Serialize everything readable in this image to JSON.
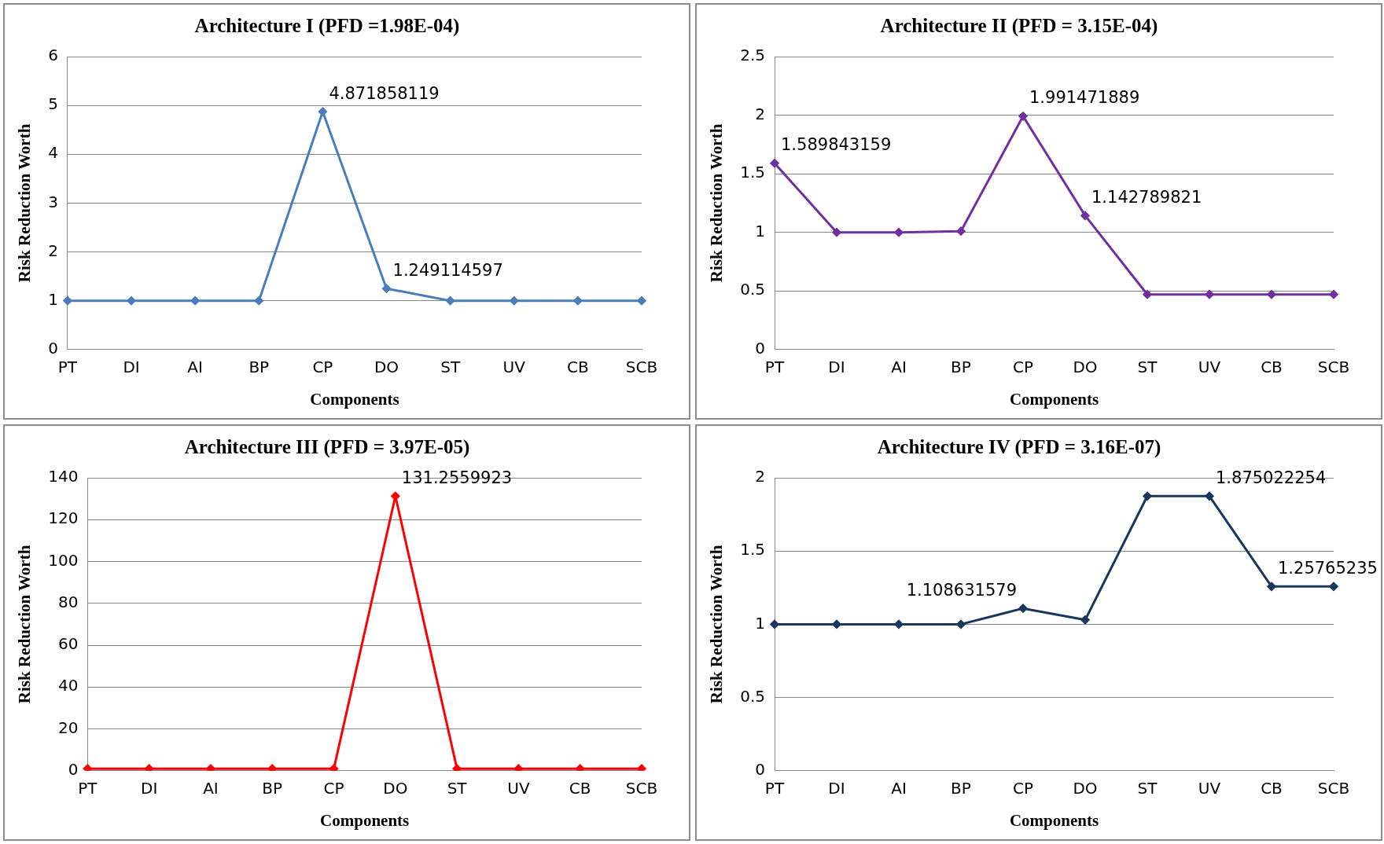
{
  "chart_data": [
    {
      "type": "line",
      "title": "Architecture I (PFD =1.98E-04)",
      "xlabel": "Components",
      "ylabel": "Risk Reduction Worth",
      "categories": [
        "PT",
        "DI",
        "AI",
        "BP",
        "CP",
        "DO",
        "ST",
        "UV",
        "CB",
        "SCB"
      ],
      "values": [
        1,
        1,
        1,
        1,
        4.871858119,
        1.249114597,
        1,
        1,
        1,
        1
      ],
      "value_labels": [
        null,
        null,
        null,
        null,
        "4.871858119",
        "1.249114597",
        null,
        null,
        null,
        null
      ],
      "color": "#4a7ebb",
      "ylim": [
        0,
        6
      ],
      "yticks": [
        0,
        1,
        2,
        3,
        4,
        5,
        6
      ],
      "grid": "y",
      "legend": false,
      "marker": "diamond",
      "line_style": "solid"
    },
    {
      "type": "line",
      "title": "Architecture II (PFD = 3.15E-04)",
      "xlabel": "Components",
      "ylabel": "Risk Reduction Worth",
      "categories": [
        "PT",
        "DI",
        "AI",
        "BP",
        "CP",
        "DO",
        "ST",
        "UV",
        "CB",
        "SCB"
      ],
      "values": [
        1.589843159,
        1,
        1,
        1.01,
        1.991471889,
        1.142789821,
        0.47,
        0.47,
        0.47,
        0.47
      ],
      "value_labels": [
        "1.589843159",
        null,
        null,
        null,
        "1.991471889",
        "1.142789821",
        null,
        null,
        null,
        null
      ],
      "color": "#7030a0",
      "ylim": [
        0,
        2.5
      ],
      "yticks": [
        0,
        0.5,
        1,
        1.5,
        2,
        2.5
      ],
      "grid": "y",
      "legend": false,
      "marker": "diamond",
      "line_style": "solid"
    },
    {
      "type": "line",
      "title": "Architecture III (PFD = 3.97E-05)",
      "xlabel": "Components",
      "ylabel": "Risk Reduction Worth",
      "categories": [
        "PT",
        "DI",
        "AI",
        "BP",
        "CP",
        "DO",
        "ST",
        "UV",
        "CB",
        "SCB"
      ],
      "values": [
        1,
        1,
        1,
        1,
        1,
        131.2559923,
        1,
        1,
        1,
        1
      ],
      "value_labels": [
        null,
        null,
        null,
        null,
        null,
        "131.2559923",
        null,
        null,
        null,
        null
      ],
      "color": "#ff0000",
      "ylim": [
        0,
        140
      ],
      "yticks": [
        0,
        20,
        40,
        60,
        80,
        100,
        120,
        140
      ],
      "grid": "y",
      "legend": false,
      "marker": "diamond",
      "line_style": "solid"
    },
    {
      "type": "line",
      "title": "Architecture IV (PFD = 3.16E-07)",
      "xlabel": "Components",
      "ylabel": "Risk Reduction Worth",
      "categories": [
        "PT",
        "DI",
        "AI",
        "BP",
        "CP",
        "DO",
        "ST",
        "UV",
        "CB",
        "SCB"
      ],
      "values": [
        1,
        1,
        1,
        1,
        1.108631579,
        1.03,
        1.875022254,
        1.875022254,
        1.25765235,
        1.25765235
      ],
      "value_labels": [
        null,
        null,
        null,
        null,
        "1.108631579",
        null,
        null,
        "1.875022254",
        "1.25765235",
        null
      ],
      "color": "#17375e",
      "ylim": [
        0,
        2
      ],
      "yticks": [
        0,
        0.5,
        1,
        1.5,
        2
      ],
      "grid": "y",
      "legend": false,
      "marker": "diamond",
      "line_style": "solid"
    }
  ]
}
